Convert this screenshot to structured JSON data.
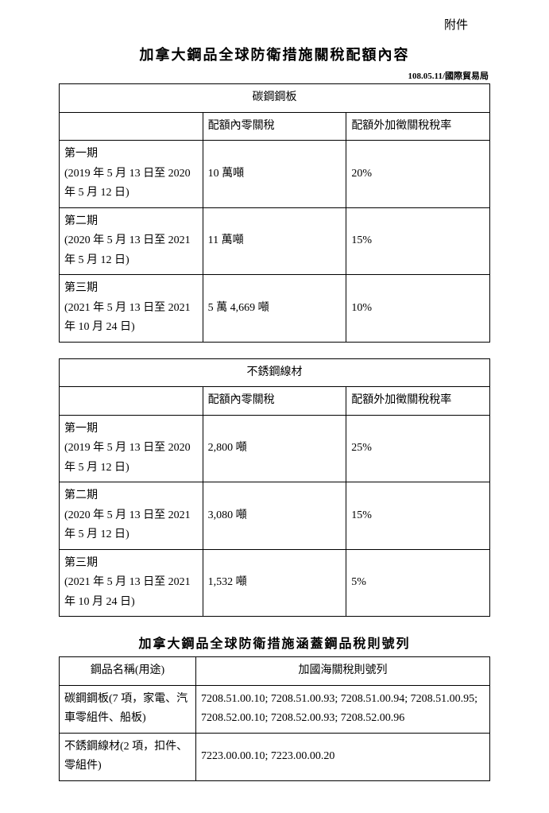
{
  "attachment_label": "附件",
  "main_title": "加拿大鋼品全球防衛措施關稅配額內容",
  "source_line": "108.05.11/國際貿易局",
  "tables": [
    {
      "category": "碳鋼鋼板",
      "header_quota": "配額內零關稅",
      "header_surcharge": "配額外加徵關稅稅率",
      "rows": [
        {
          "period_name": "第一期",
          "period_range": "(2019 年 5 月 13 日至 2020 年 5 月 12 日)",
          "quota": "10 萬噸",
          "surcharge": "20%"
        },
        {
          "period_name": "第二期",
          "period_range": "(2020 年 5 月 13 日至 2021 年 5 月 12 日)",
          "quota": "11 萬噸",
          "surcharge": "15%"
        },
        {
          "period_name": "第三期",
          "period_range": "(2021 年 5 月 13 日至 2021 年 10 月 24 日)",
          "quota": "5 萬 4,669 噸",
          "surcharge": "10%"
        }
      ]
    },
    {
      "category": "不銹鋼線材",
      "header_quota": "配額內零關稅",
      "header_surcharge": "配額外加徵關稅稅率",
      "rows": [
        {
          "period_name": "第一期",
          "period_range": "(2019 年 5 月 13 日至 2020 年 5 月 12 日)",
          "quota": "2,800 噸",
          "surcharge": "25%"
        },
        {
          "period_name": "第二期",
          "period_range": "(2020 年 5 月 13 日至 2021 年 5 月 12 日)",
          "quota": "3,080 噸",
          "surcharge": "15%"
        },
        {
          "period_name": "第三期",
          "period_range": "(2021 年 5 月 13 日至 2021 年 10 月 24 日)",
          "quota": "1,532 噸",
          "surcharge": "5%"
        }
      ]
    }
  ],
  "hs_title": "加拿大鋼品全球防衛措施涵蓋鋼品稅則號列",
  "hs_table": {
    "header_left": "鋼品名稱(用途)",
    "header_right": "加國海關稅則號列",
    "rows": [
      {
        "name": "碳鋼鋼板(7 項，家電、汽車零組件、船板)",
        "codes": "7208.51.00.10; 7208.51.00.93; 7208.51.00.94; 7208.51.00.95; 7208.52.00.10; 7208.52.00.93; 7208.52.00.96"
      },
      {
        "name": "不銹鋼線材(2 項，扣件、零組件)",
        "codes": "7223.00.00.10; 7223.00.00.20"
      }
    ]
  }
}
